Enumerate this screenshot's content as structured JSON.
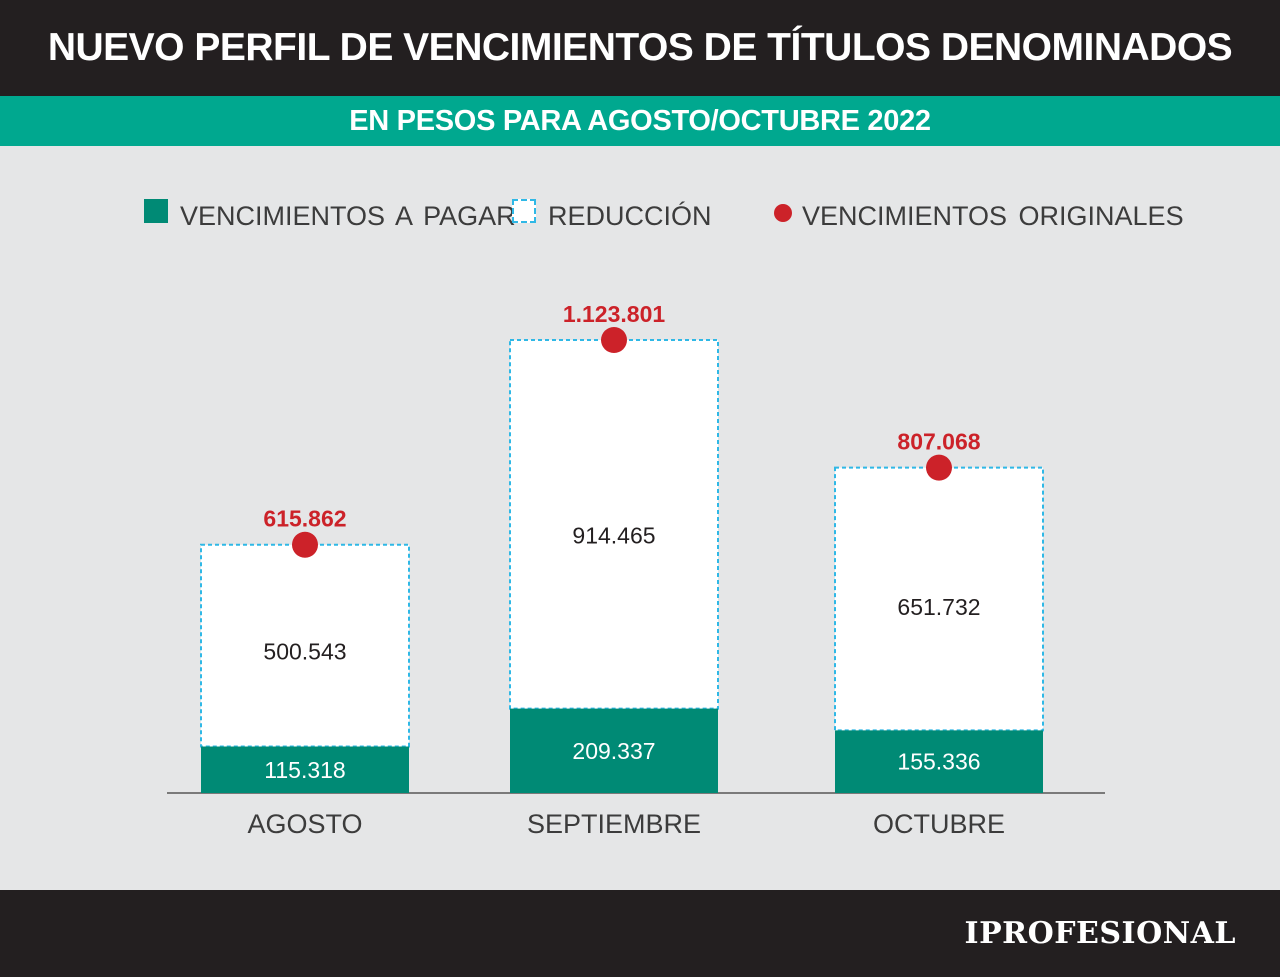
{
  "header": {
    "title": "NUEVO PERFIL DE VENCIMIENTOS DE TÍTULOS DENOMINADOS",
    "subtitle": "EN PESOS PARA AGOSTO/OCTUBRE 2022"
  },
  "legend": {
    "pay": "VENCIMIENTOS A PAGAR",
    "reduction": "REDUCCIÓN",
    "original": "VENCIMIENTOS ORIGINALES"
  },
  "footer": {
    "logo": "IPROFESIONAL"
  },
  "colors": {
    "pay": "#008a75",
    "reduction_border": "#2fb8e6",
    "original": "#cc2229",
    "title_band": "#231f20",
    "subtitle_band": "#00a88f",
    "background": "#e5e6e7"
  },
  "chart_data": {
    "type": "bar",
    "stacked": true,
    "categories": [
      "AGOSTO",
      "SEPTIEMBRE",
      "OCTUBRE"
    ],
    "series": [
      {
        "name": "VENCIMIENTOS A PAGAR",
        "values": [
          115318,
          209337,
          155336
        ],
        "labels": [
          "115.318",
          "209.337",
          "155.336"
        ]
      },
      {
        "name": "REDUCCIÓN",
        "values": [
          500543,
          914465,
          651732
        ],
        "labels": [
          "500.543",
          "914.465",
          "651.732"
        ]
      }
    ],
    "markers": {
      "name": "VENCIMIENTOS ORIGINALES",
      "values": [
        615862,
        1123801,
        807068
      ],
      "labels": [
        "615.862",
        "1.123.801",
        "807.068"
      ]
    },
    "ylim": [
      0,
      1123801
    ],
    "grid": false,
    "legend_position": "top"
  }
}
